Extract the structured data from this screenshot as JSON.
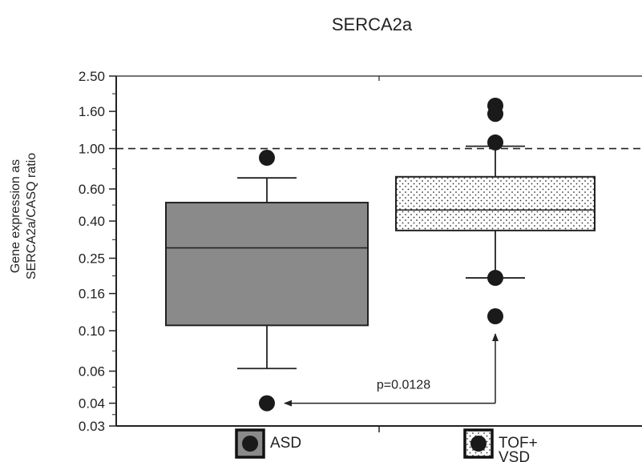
{
  "chart_data": {
    "type": "box",
    "title": "SERCA2a",
    "ylabel_line1": "Gene expression as",
    "ylabel_line2": "SERCA2a/CASQ ratio",
    "yscale": "log",
    "ylim": [
      0.03,
      2.5
    ],
    "yticks": [
      {
        "value": 0.03,
        "label": "0.03"
      },
      {
        "value": 0.04,
        "label": "0.04"
      },
      {
        "value": 0.06,
        "label": "0.06"
      },
      {
        "value": 0.1,
        "label": "0.10"
      },
      {
        "value": 0.16,
        "label": "0.16"
      },
      {
        "value": 0.25,
        "label": "0.25"
      },
      {
        "value": 0.4,
        "label": "0.40"
      },
      {
        "value": 0.6,
        "label": "0.60"
      },
      {
        "value": 1.0,
        "label": "1.00"
      },
      {
        "value": 1.6,
        "label": "1.60"
      },
      {
        "value": 2.5,
        "label": "2.50"
      }
    ],
    "reference_line": {
      "value": 1.0,
      "style": "dashed"
    },
    "groups": [
      {
        "name": "ASD",
        "legend_line1": "ASD",
        "legend_line2": "",
        "fill": "#8a8a8a",
        "pattern": "solid",
        "whisker_low": 0.062,
        "q1": 0.107,
        "median": 0.285,
        "q3": 0.505,
        "whisker_high": 0.69,
        "outliers": [
          0.04,
          0.89
        ]
      },
      {
        "name": "TOF+VSD",
        "legend_line1": "TOF+",
        "legend_line2": "VSD",
        "fill": "#ffffff",
        "pattern": "dotted",
        "whisker_low": 0.195,
        "q1": 0.355,
        "median": 0.46,
        "q3": 0.7,
        "whisker_high": 1.03,
        "outliers": [
          0.12,
          0.195,
          1.08,
          1.55,
          1.72
        ]
      }
    ],
    "annotation": {
      "text": "p=0.0128",
      "from_group": 1,
      "from_value": 0.12,
      "to_group": 0,
      "to_value": 0.04
    }
  }
}
